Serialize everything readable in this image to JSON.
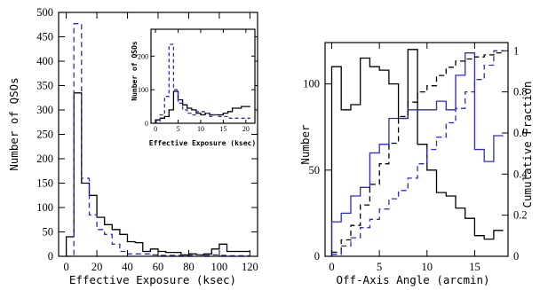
{
  "colors": {
    "black": "#000000",
    "blue": "#2a2ad8",
    "background": "#ffffff"
  },
  "chart_data": [
    {
      "type": "histogram",
      "panel": "left",
      "xlabel": "Effective Exposure (ksec)",
      "ylabel": "Number of QSOs",
      "xlim": [
        -5,
        125
      ],
      "ylim": [
        0,
        500
      ],
      "xticks": [
        0,
        20,
        40,
        60,
        80,
        100,
        120
      ],
      "yticks": [
        0,
        50,
        100,
        150,
        200,
        250,
        300,
        350,
        400,
        450,
        500
      ],
      "bin_edges": [
        0,
        5,
        10,
        15,
        20,
        25,
        30,
        35,
        40,
        45,
        50,
        55,
        60,
        65,
        70,
        75,
        80,
        85,
        90,
        95,
        100,
        105,
        110,
        115,
        120
      ],
      "series": [
        {
          "style": "solid",
          "color": "#000000",
          "values": [
            40,
            335,
            150,
            125,
            80,
            65,
            55,
            45,
            30,
            28,
            10,
            15,
            10,
            8,
            8,
            3,
            5,
            3,
            5,
            15,
            25,
            10,
            10,
            10
          ]
        },
        {
          "style": "dashed",
          "color": "#2a2ad8",
          "values": [
            0,
            477,
            160,
            85,
            55,
            45,
            25,
            10,
            5,
            5,
            5,
            3,
            2,
            2,
            2,
            2,
            2,
            3,
            2,
            3,
            2,
            1,
            1,
            1
          ]
        }
      ],
      "grid": false
    },
    {
      "type": "histogram",
      "panel": "left-inset",
      "xlabel": "Effective Exposure (ksec)",
      "ylabel": "Number of QSOs",
      "xlim": [
        -1,
        22
      ],
      "ylim": [
        0,
        280
      ],
      "xticks": [
        0,
        5,
        10,
        15,
        20
      ],
      "yticks": [
        0,
        100,
        200
      ],
      "bin_edges": [
        0,
        1,
        2,
        3,
        4,
        5,
        6,
        7,
        8,
        9,
        10,
        11,
        12,
        13,
        14,
        15,
        16,
        17,
        18,
        19,
        20,
        21
      ],
      "series": [
        {
          "style": "solid",
          "color": "#000000",
          "values": [
            10,
            15,
            20,
            40,
            95,
            70,
            55,
            45,
            40,
            30,
            25,
            30,
            25,
            25,
            25,
            30,
            35,
            45,
            45,
            50,
            50
          ]
        },
        {
          "style": "dashed",
          "color": "#2a2ad8",
          "values": [
            5,
            25,
            80,
            235,
            100,
            60,
            40,
            30,
            25,
            35,
            35,
            30,
            20,
            25,
            20,
            20,
            15,
            15,
            15,
            15,
            15
          ]
        }
      ],
      "grid": false
    },
    {
      "type": "histogram",
      "panel": "right",
      "xlabel": "Off-Axis Angle (arcmin)",
      "ylabel": "Number",
      "y2label": "Cumulative Fraction",
      "xlim": [
        -0.7,
        18.5
      ],
      "ylim": [
        0,
        124
      ],
      "y2lim": [
        0,
        1.04
      ],
      "xticks": [
        0,
        5,
        10,
        15
      ],
      "yticks": [
        0,
        50,
        100
      ],
      "y2ticks": [
        0,
        0.2,
        0.4,
        0.6,
        0.8,
        1
      ],
      "bin_edges": [
        0,
        1,
        2,
        3,
        4,
        5,
        6,
        7,
        8,
        9,
        10,
        11,
        12,
        13,
        14,
        15,
        16,
        17,
        18
      ],
      "series": [
        {
          "style": "solid",
          "color": "#000000",
          "values": [
            110,
            85,
            88,
            115,
            110,
            108,
            100,
            80,
            120,
            65,
            50,
            37,
            35,
            28,
            22,
            12,
            10,
            15
          ]
        },
        {
          "style": "solid",
          "color": "#2a2ad8",
          "values": [
            20,
            25,
            35,
            40,
            60,
            65,
            80,
            80,
            85,
            85,
            85,
            90,
            85,
            105,
            118,
            62,
            55,
            70
          ]
        },
        {
          "style": "dashed",
          "color": "#000000",
          "cumulative": true,
          "values": [
            0.02,
            0.08,
            0.15,
            0.25,
            0.35,
            0.45,
            0.55,
            0.68,
            0.75,
            0.8,
            0.83,
            0.88,
            0.92,
            0.95,
            0.96,
            0.97,
            0.98,
            0.99
          ]
        },
        {
          "style": "dashed",
          "color": "#2a2ad8",
          "cumulative": true,
          "values": [
            0.01,
            0.05,
            0.09,
            0.14,
            0.18,
            0.23,
            0.28,
            0.32,
            0.38,
            0.45,
            0.52,
            0.58,
            0.65,
            0.72,
            0.8,
            0.86,
            0.93,
            1.0
          ]
        }
      ],
      "grid": false
    }
  ]
}
